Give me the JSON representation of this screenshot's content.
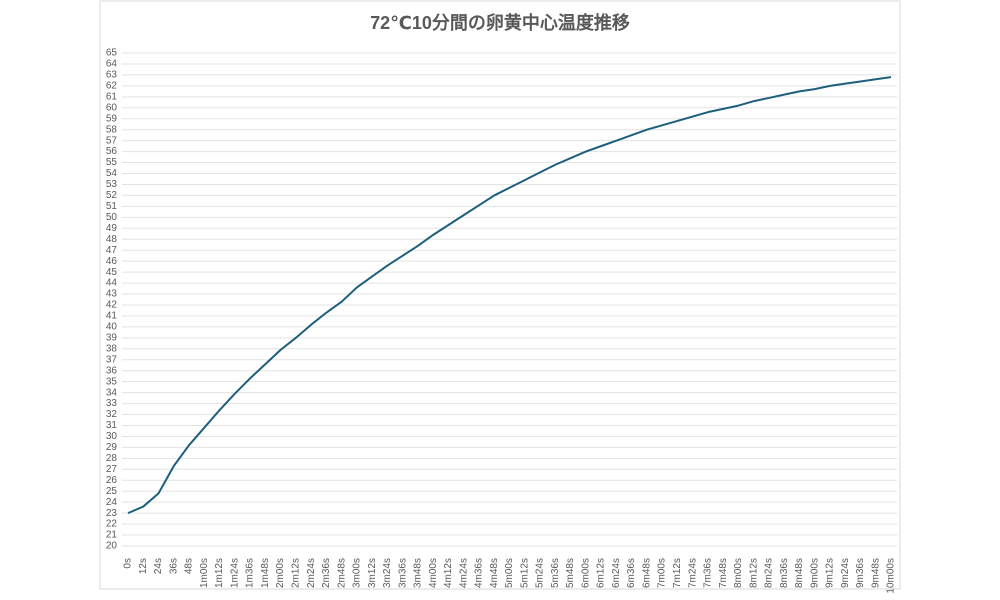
{
  "chart_data": {
    "type": "line",
    "title": "72℃10分間の卵黄中心温度推移",
    "categories": [
      "0s",
      "12s",
      "24s",
      "36s",
      "48s",
      "1m00s",
      "1m12s",
      "1m24s",
      "1m36s",
      "1m48s",
      "2m00s",
      "2m12s",
      "2m24s",
      "2m36s",
      "2m48s",
      "3m00s",
      "3m12s",
      "3m24s",
      "3m36s",
      "3m48s",
      "4m00s",
      "4m12s",
      "4m24s",
      "4m36s",
      "4m48s",
      "5m00s",
      "5m12s",
      "5m24s",
      "5m36s",
      "5m48s",
      "6m00s",
      "6m12s",
      "6m24s",
      "6m36s",
      "6m48s",
      "7m00s",
      "7m12s",
      "7m24s",
      "7m36s",
      "7m48s",
      "8m00s",
      "8m12s",
      "8m24s",
      "8m36s",
      "8m48s",
      "9m00s",
      "9m12s",
      "9m24s",
      "9m36s",
      "9m48s",
      "10m00s"
    ],
    "series": [
      {
        "color": "#1d5f7c",
        "values": [
          23.0,
          23.6,
          24.8,
          27.3,
          29.2,
          30.8,
          32.4,
          33.9,
          35.3,
          36.6,
          37.9,
          39.0,
          40.2,
          41.3,
          42.3,
          43.6,
          44.6,
          45.6,
          46.5,
          47.4,
          48.4,
          49.3,
          50.2,
          51.1,
          52.0,
          52.7,
          53.4,
          54.1,
          54.8,
          55.4,
          56.0,
          56.5,
          57.0,
          57.5,
          58.0,
          58.4,
          58.8,
          59.2,
          59.6,
          59.9,
          60.2,
          60.6,
          60.9,
          61.2,
          61.5,
          61.7,
          62.0,
          62.2,
          62.4,
          62.6,
          62.8
        ]
      }
    ],
    "ylim": [
      20,
      65
    ],
    "yticks": [
      20,
      21,
      22,
      23,
      24,
      25,
      26,
      27,
      28,
      29,
      30,
      31,
      32,
      33,
      34,
      35,
      36,
      37,
      38,
      39,
      40,
      41,
      42,
      43,
      44,
      45,
      46,
      47,
      48,
      49,
      50,
      51,
      52,
      53,
      54,
      55,
      56,
      57,
      58,
      59,
      60,
      61,
      62,
      63,
      64,
      65
    ],
    "grid": true
  }
}
